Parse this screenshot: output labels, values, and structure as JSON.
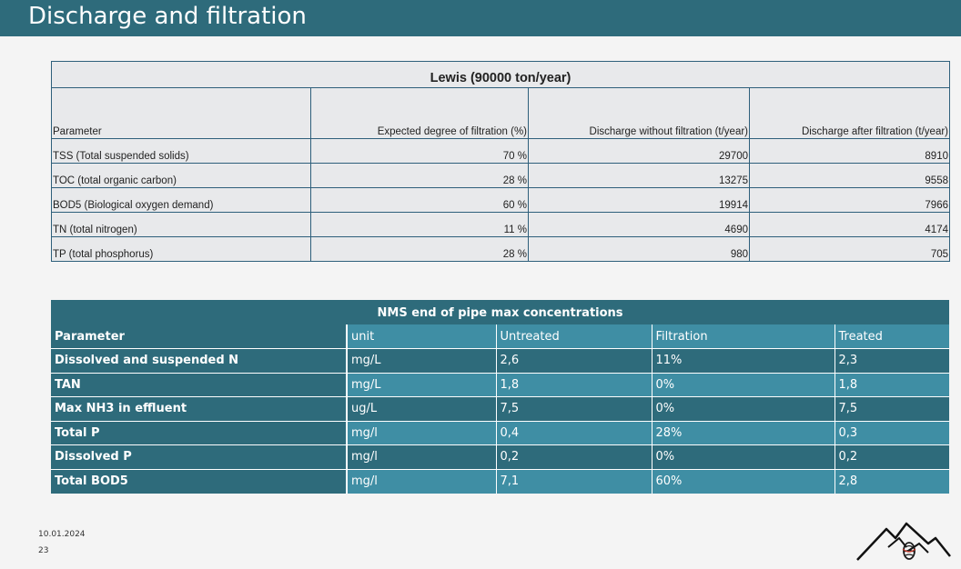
{
  "page": {
    "title": "Discharge and filtration",
    "date": "10.01.2024",
    "page_number": "23"
  },
  "table1": {
    "title": "Lewis (90000 ton/year)",
    "headers": [
      "Parameter",
      "Expected degree of filtration (%)",
      "Discharge without filtration (t/year)",
      "Discharge after filtration (t/year)"
    ],
    "rows": [
      [
        "TSS (Total suspended solids)",
        "70 %",
        "29700",
        "8910"
      ],
      [
        "TOC (total organic carbon)",
        "28 %",
        "13275",
        "9558"
      ],
      [
        "BOD5 (Biological oxygen demand)",
        "60 %",
        "19914",
        "7966"
      ],
      [
        "TN (total nitrogen)",
        "11 %",
        "4690",
        "4174"
      ],
      [
        "TP (total phosphorus)",
        "28 %",
        "980",
        "705"
      ]
    ]
  },
  "table2": {
    "title": "NMS end of pipe max concentrations",
    "headers": [
      "Parameter",
      "unit",
      "Untreated",
      "Filtration",
      "Treated"
    ],
    "rows": [
      [
        "Dissolved and suspended N",
        "mg/L",
        "2,6",
        "11%",
        "2,3"
      ],
      [
        "TAN",
        "mg/L",
        "1,8",
        "0%",
        "1,8"
      ],
      [
        "Max NH3 in effluent",
        "ug/L",
        "7,5",
        "0%",
        "7,5"
      ],
      [
        "Total P",
        "mg/l",
        "0,4",
        "28%",
        "0,3"
      ],
      [
        "Dissolved P",
        "mg/l",
        "0,2",
        "0%",
        "0,2"
      ],
      [
        "Total BOD5",
        "mg/l",
        "7,1",
        "60%",
        "2,8"
      ]
    ]
  },
  "icons": {
    "logo": "mountain-fish-logo-icon"
  },
  "colors": {
    "header": "#2e6b7b",
    "table_dark": "#2e6b7b",
    "table_light": "#3f8ea4",
    "table1_bg": "#e8e9eb"
  }
}
